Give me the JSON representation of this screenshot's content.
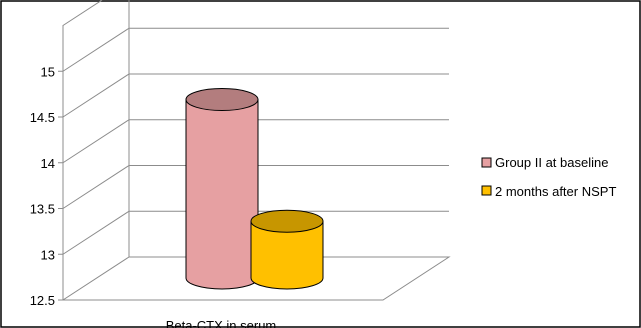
{
  "chart_data": {
    "type": "bar",
    "style": "3d-cylinder",
    "categories": [
      "Beta-CTX in serum"
    ],
    "series": [
      {
        "name": "Group II at baseline",
        "values": [
          14.68
        ],
        "color": "#E6A0A2"
      },
      {
        "name": "2 months after NSPT",
        "values": [
          13.35
        ],
        "color": "#FFC000"
      }
    ],
    "ylim": [
      12.5,
      15.5
    ],
    "yticks": [
      "12.5",
      "13",
      "13.5",
      "14",
      "14.5",
      "15"
    ],
    "ytick_values": [
      12.5,
      13,
      13.5,
      14,
      14.5,
      15
    ],
    "grid": true,
    "legend_position": "right",
    "title": "",
    "xlabel": "",
    "ylabel": ""
  }
}
